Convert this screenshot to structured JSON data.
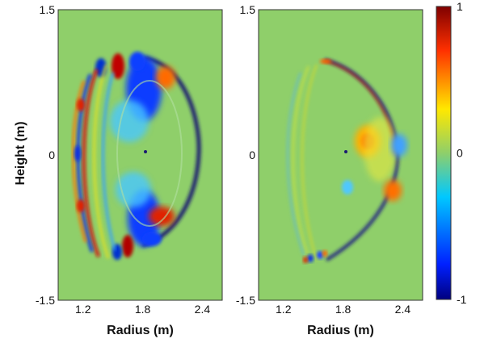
{
  "chart_data": [
    {
      "type": "heatmap",
      "title": "",
      "xlabel": "Radius (m)",
      "ylabel": "Height (m)",
      "xlim": [
        0.95,
        2.6
      ],
      "ylim": [
        -1.5,
        1.5
      ],
      "xticks": [
        "1.2",
        "1.8",
        "2.4"
      ],
      "yticks": [
        "1.5",
        "0",
        "-1.5"
      ]
    },
    {
      "type": "heatmap",
      "title": "",
      "xlabel": "Radius (m)",
      "ylabel": "",
      "xlim": [
        0.95,
        2.6
      ],
      "ylim": [
        -1.5,
        1.5
      ],
      "xticks": [
        "1.2",
        "1.8",
        "2.4"
      ],
      "yticks": [
        "1.5",
        "0",
        "-1.5"
      ]
    }
  ],
  "colorbar": {
    "range": [
      -1,
      1
    ],
    "ticks": [
      "1",
      "0",
      "-1"
    ],
    "colors": [
      "#00007f",
      "#0040ff",
      "#00c0ff",
      "#7fd47f",
      "#ffff00",
      "#ff8000",
      "#d00000",
      "#7f0000"
    ]
  }
}
